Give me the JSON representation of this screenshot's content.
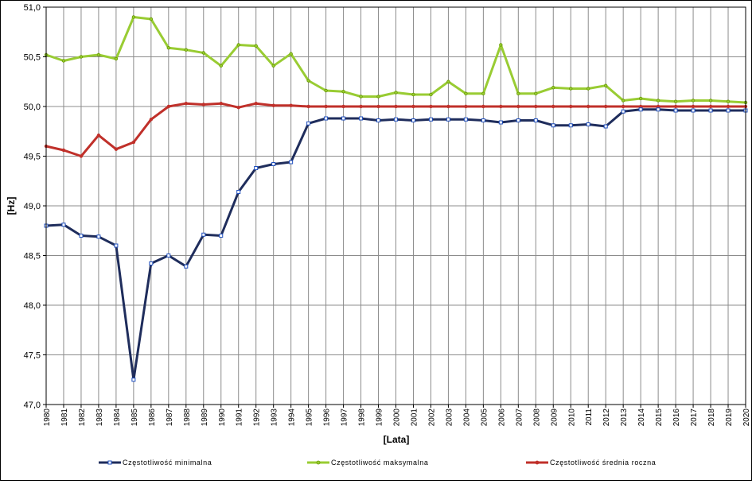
{
  "chart_data": {
    "type": "line",
    "title": "",
    "xlabel": "[Lata]",
    "ylabel": "[Hz]",
    "ylim": [
      47.0,
      51.0
    ],
    "yticks": [
      "47,0",
      "47,5",
      "48,0",
      "48,5",
      "49,0",
      "49,5",
      "50,0",
      "50,5",
      "51,0"
    ],
    "grid": true,
    "legend_position": "bottom",
    "categories": [
      "1980",
      "1981",
      "1982",
      "1983",
      "1984",
      "1985",
      "1986",
      "1987",
      "1988",
      "1989",
      "1990",
      "1991",
      "1992",
      "1993",
      "1994",
      "1995",
      "1996",
      "1997",
      "1998",
      "1999",
      "2000",
      "2001",
      "2002",
      "2003",
      "2004",
      "2005",
      "2006",
      "2007",
      "2008",
      "2009",
      "2010",
      "2011",
      "2012",
      "2013",
      "2014",
      "2015",
      "2016",
      "2017",
      "2018",
      "2019",
      "2020"
    ],
    "series": [
      {
        "name": "Częstotliwość minimalna",
        "color": "#1f2d5c",
        "marker_fill": "#ffffff",
        "marker_stroke": "#1f4fbf",
        "values": [
          48.8,
          48.81,
          48.7,
          48.69,
          48.6,
          47.25,
          48.42,
          48.5,
          48.39,
          48.71,
          48.7,
          49.14,
          49.38,
          49.42,
          49.44,
          49.83,
          49.88,
          49.88,
          49.88,
          49.86,
          49.87,
          49.86,
          49.87,
          49.87,
          49.87,
          49.86,
          49.84,
          49.86,
          49.86,
          49.81,
          49.81,
          49.82,
          49.8,
          49.95,
          49.97,
          49.97,
          49.96,
          49.96,
          49.96,
          49.96,
          49.96
        ]
      },
      {
        "name": "Częstotliwość maksymalna",
        "color": "#99cc33",
        "marker_fill": "#99cc33",
        "marker_stroke": "#669900",
        "values": [
          50.52,
          50.46,
          50.5,
          50.52,
          50.48,
          50.9,
          50.88,
          50.59,
          50.57,
          50.54,
          50.41,
          50.62,
          50.61,
          50.41,
          50.53,
          50.26,
          50.16,
          50.15,
          50.1,
          50.1,
          50.14,
          50.12,
          50.12,
          50.25,
          50.13,
          50.13,
          50.62,
          50.13,
          50.13,
          50.19,
          50.18,
          50.18,
          50.21,
          50.06,
          50.08,
          50.06,
          50.05,
          50.06,
          50.06,
          50.05,
          50.04
        ]
      },
      {
        "name": "Częstotliwość średnia roczna",
        "color": "#c0302a",
        "marker_fill": "#c0302a",
        "marker_stroke": "#c0302a",
        "values": [
          49.6,
          49.56,
          49.5,
          49.71,
          49.57,
          49.64,
          49.87,
          50.0,
          50.03,
          50.02,
          50.03,
          49.99,
          50.03,
          50.01,
          50.01,
          50.0,
          50.0,
          50.0,
          50.0,
          50.0,
          50.0,
          50.0,
          50.0,
          50.0,
          50.0,
          50.0,
          50.0,
          50.0,
          50.0,
          50.0,
          50.0,
          50.0,
          50.0,
          50.0,
          50.0,
          50.0,
          50.0,
          50.0,
          50.0,
          50.0,
          50.0
        ]
      }
    ]
  }
}
